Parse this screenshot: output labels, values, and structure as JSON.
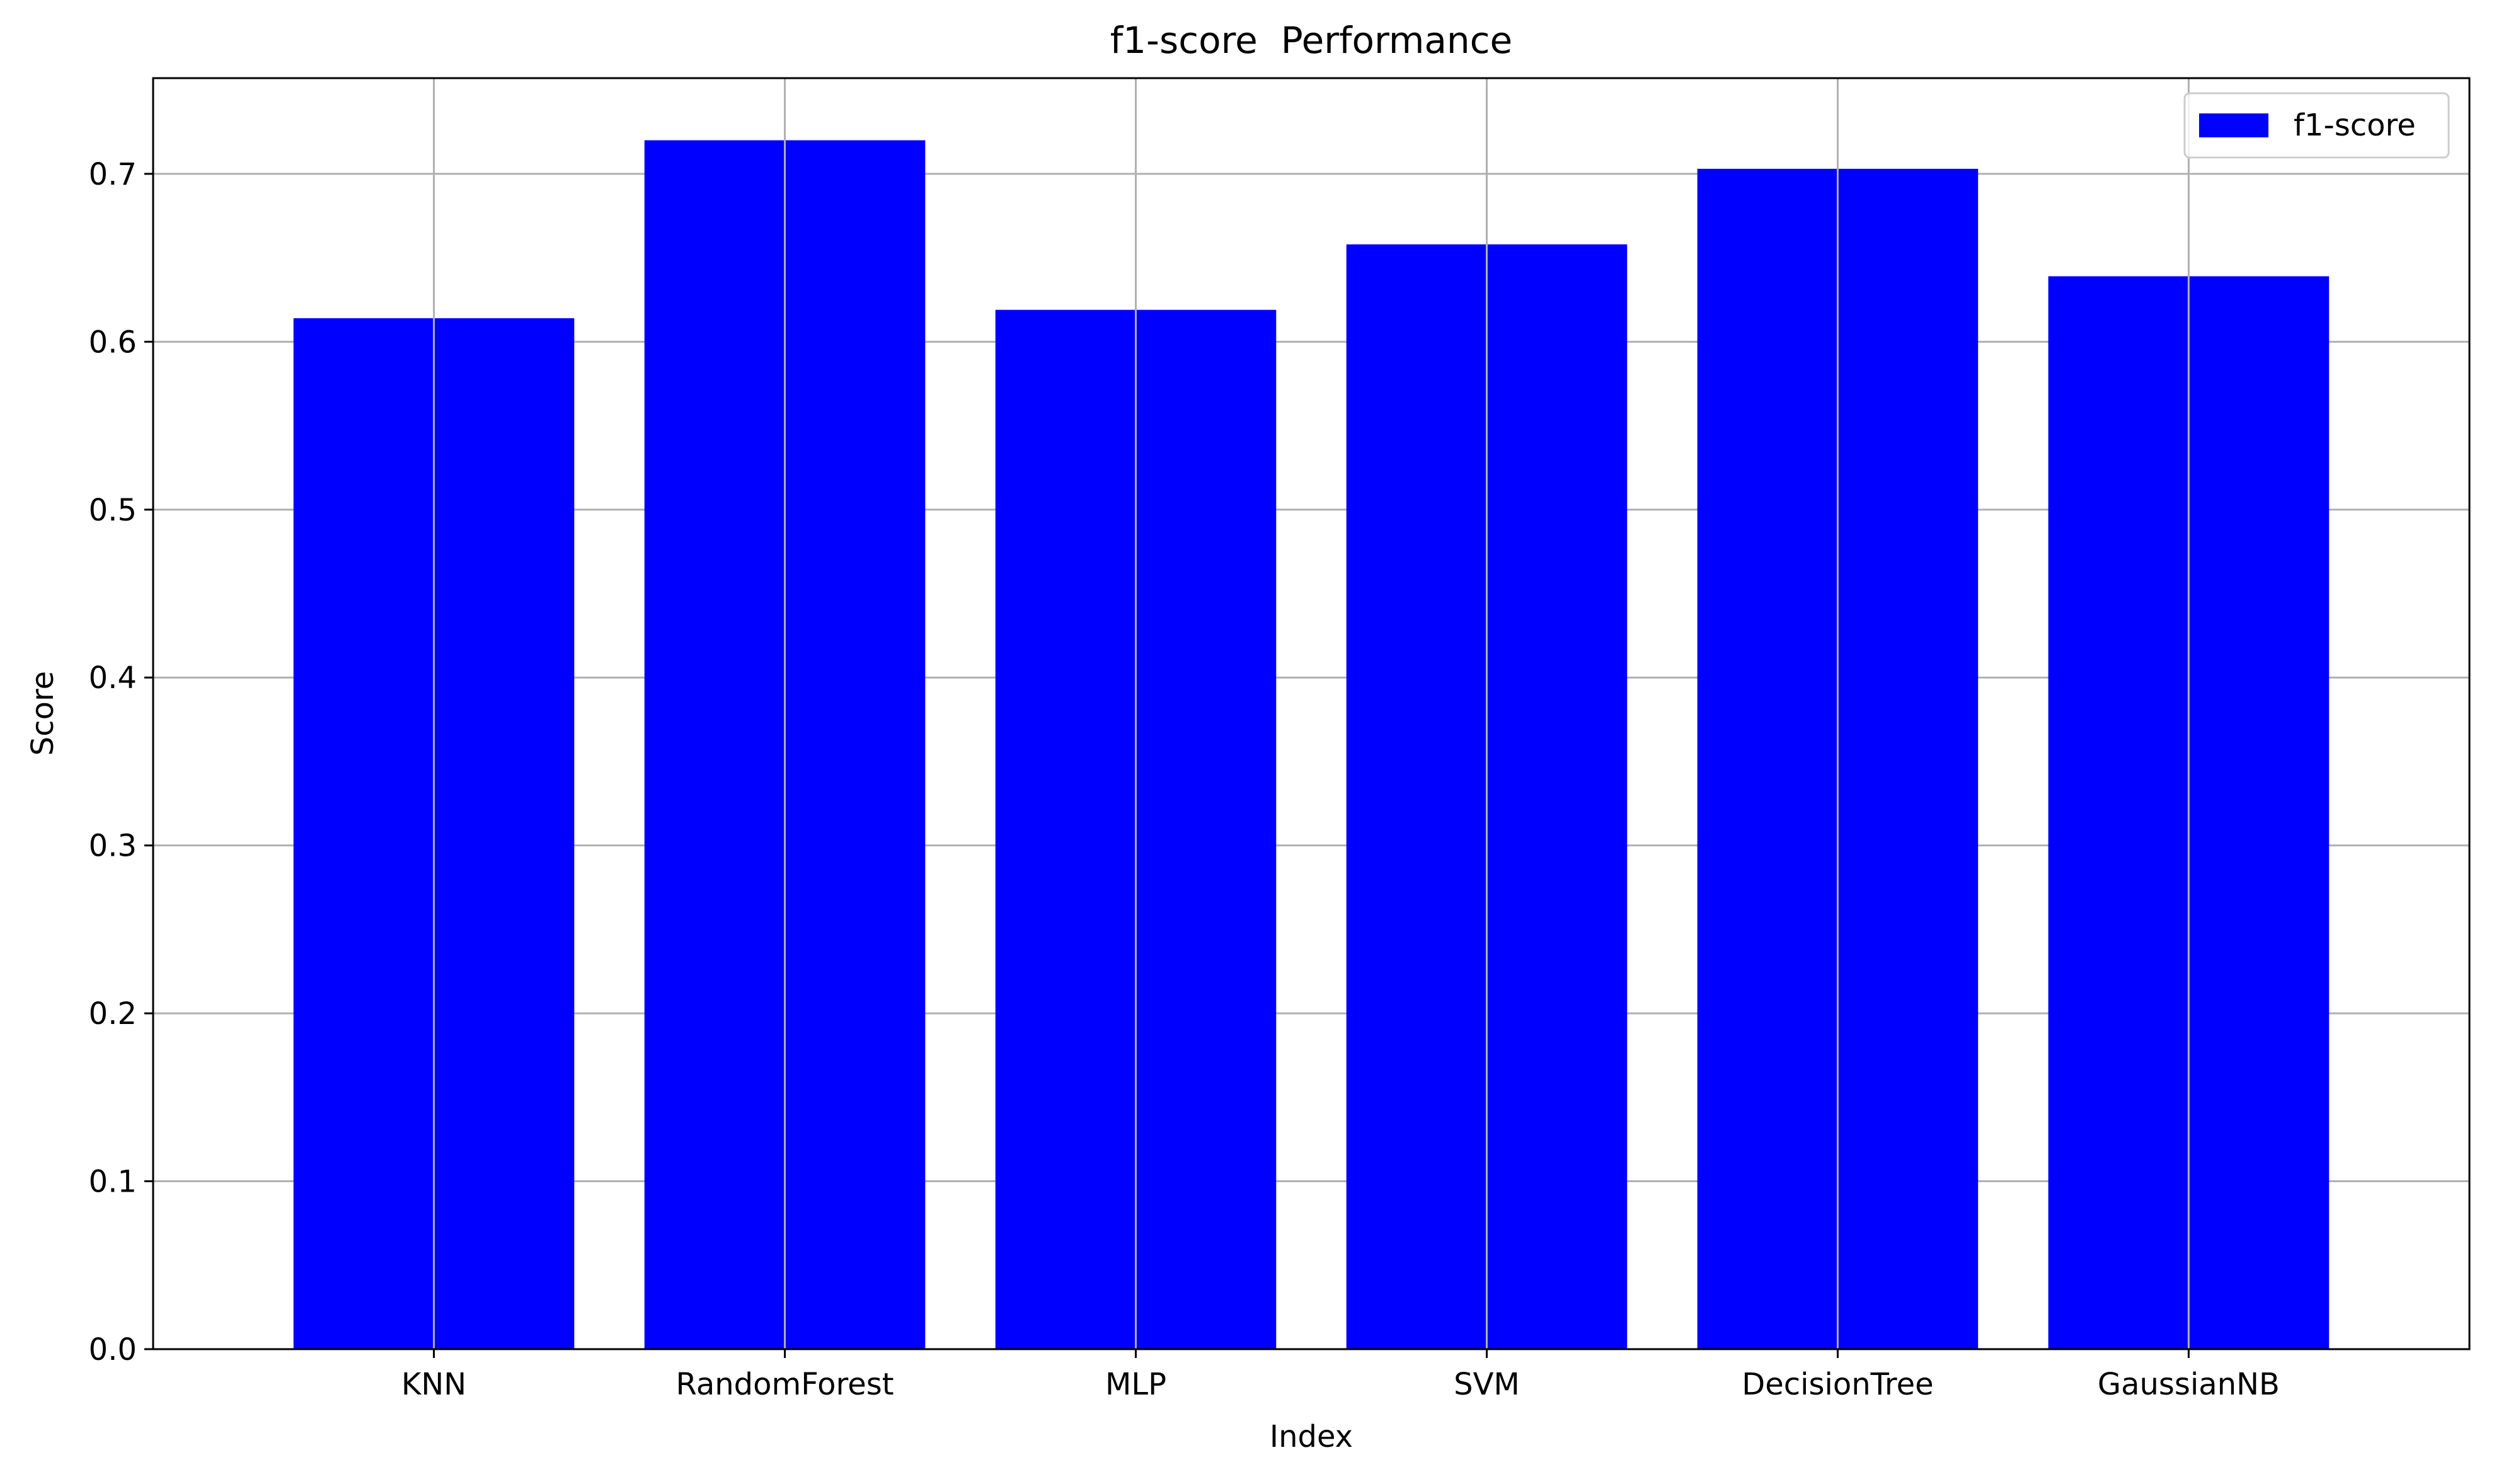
{
  "chart_data": {
    "type": "bar",
    "title": "f1-score  Performance",
    "xlabel": "Index",
    "ylabel": "Score",
    "categories": [
      "KNN",
      "RandomForest",
      "MLP",
      "SVM",
      "DecisionTree",
      "GaussianNB"
    ],
    "series": [
      {
        "name": "f1-score",
        "values": [
          0.614,
          0.72,
          0.619,
          0.658,
          0.703,
          0.639
        ]
      }
    ],
    "ylim": [
      0,
      0.757
    ],
    "yticks": [
      "0.0",
      "0.1",
      "0.2",
      "0.3",
      "0.4",
      "0.5",
      "0.6",
      "0.7"
    ],
    "grid": true,
    "legend_position": "top-right",
    "colors": {
      "bar": "#0000ff",
      "grid": "#b0b0b0",
      "axis": "#000000",
      "background": "#ffffff"
    }
  }
}
